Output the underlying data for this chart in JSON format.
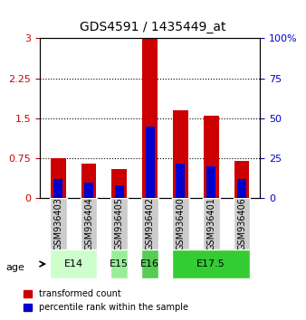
{
  "title": "GDS4591 / 1435449_at",
  "samples": [
    "GSM936403",
    "GSM936404",
    "GSM936405",
    "GSM936402",
    "GSM936400",
    "GSM936401",
    "GSM936406"
  ],
  "transformed_count": [
    0.75,
    0.65,
    0.55,
    3.0,
    1.65,
    1.55,
    0.7
  ],
  "percentile_rank": [
    0.12,
    0.1,
    0.08,
    0.45,
    0.22,
    0.2,
    0.12
  ],
  "age_groups": [
    {
      "label": "E14",
      "samples": [
        "GSM936403",
        "GSM936404"
      ],
      "color": "#ccffcc"
    },
    {
      "label": "E15",
      "samples": [
        "GSM936405"
      ],
      "color": "#99ee99"
    },
    {
      "label": "E16",
      "samples": [
        "GSM936402"
      ],
      "color": "#55cc55"
    },
    {
      "label": "E17.5",
      "samples": [
        "GSM936400",
        "GSM936401",
        "GSM936406"
      ],
      "color": "#33cc33"
    }
  ],
  "ylim_left": [
    0,
    3.0
  ],
  "ylim_right": [
    0,
    100
  ],
  "yticks_left": [
    0,
    0.75,
    1.5,
    2.25,
    3.0
  ],
  "ytick_labels_left": [
    "0",
    "0.75",
    "1.5",
    "2.25",
    "3"
  ],
  "yticks_right": [
    0,
    25,
    50,
    75,
    100
  ],
  "ytick_labels_right": [
    "0",
    "25",
    "50",
    "75",
    "100%"
  ],
  "bar_color_red": "#cc0000",
  "bar_color_blue": "#0000cc",
  "bar_width": 0.5,
  "bg_color_plot": "#ffffff",
  "bg_color_samples": "#cccccc",
  "legend_red": "transformed count",
  "legend_blue": "percentile rank within the sample",
  "age_label": "age"
}
